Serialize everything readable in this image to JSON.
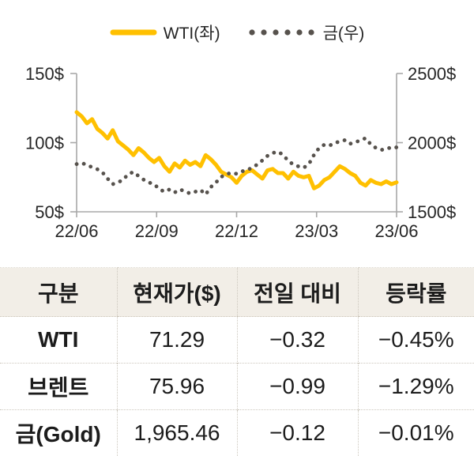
{
  "colors": {
    "wti_line": "#FFC000",
    "gold_dots": "#57524D",
    "axis": "#A8A8A8",
    "header_bg": "#F2EEE7",
    "text": "#1C1C1C"
  },
  "chart_data": {
    "type": "line",
    "title": "",
    "x_labels": [
      "22/06",
      "22/09",
      "22/12",
      "23/03",
      "23/06"
    ],
    "left_axis": {
      "min": 50,
      "max": 150,
      "ticks": [
        {
          "label": "150$",
          "value": 150
        },
        {
          "label": "100$",
          "value": 100
        },
        {
          "label": "50$",
          "value": 50
        }
      ]
    },
    "right_axis": {
      "min": 1500,
      "max": 2500,
      "ticks": [
        {
          "label": "2500$",
          "value": 2500
        },
        {
          "label": "2000$",
          "value": 2000
        },
        {
          "label": "1500$",
          "value": 1500
        }
      ]
    },
    "legend_position": "top",
    "grid": false,
    "series": [
      {
        "name": "WTI(좌)",
        "axis": "left",
        "color": "#FFC000",
        "style": "solid",
        "values": [
          122,
          119,
          114,
          117,
          110,
          107,
          103,
          109,
          101,
          98,
          95,
          91,
          96,
          93,
          89,
          86,
          89,
          83,
          79,
          85,
          82,
          87,
          84,
          86,
          83,
          91,
          88,
          84,
          79,
          77,
          75,
          71,
          76,
          79,
          80,
          77,
          74,
          80,
          81,
          78,
          78,
          74,
          79,
          76,
          75,
          76,
          67,
          69,
          73,
          75,
          79,
          83,
          81,
          78,
          76,
          71,
          69,
          73,
          71,
          70,
          72,
          70,
          71.29
        ]
      },
      {
        "name": "금(우)",
        "axis": "right",
        "color": "#57524D",
        "style": "dotted",
        "values": [
          1845,
          1852,
          1840,
          1822,
          1808,
          1785,
          1740,
          1700,
          1712,
          1732,
          1772,
          1788,
          1758,
          1732,
          1712,
          1700,
          1665,
          1645,
          1662,
          1640,
          1662,
          1648,
          1632,
          1645,
          1658,
          1625,
          1678,
          1712,
          1752,
          1772,
          1782,
          1775,
          1792,
          1802,
          1818,
          1842,
          1872,
          1905,
          1925,
          1935,
          1912,
          1868,
          1842,
          1828,
          1818,
          1845,
          1912,
          1962,
          1985,
          1978,
          1998,
          2008,
          2018,
          1992,
          2002,
          2018,
          2032,
          1988,
          1962,
          1948,
          1952,
          1968,
          1965.46
        ]
      }
    ]
  },
  "table": {
    "headers": [
      "구분",
      "현재가($)",
      "전일 대비",
      "등락률"
    ],
    "rows": [
      {
        "label": "WTI",
        "price": "71.29",
        "change": "−0.32",
        "pct": "−0.45%"
      },
      {
        "label": "브렌트",
        "price": "75.96",
        "change": "−0.99",
        "pct": "−1.29%"
      },
      {
        "label": "금(Gold)",
        "price": "1,965.46",
        "change": "−0.12",
        "pct": "−0.01%"
      }
    ]
  }
}
